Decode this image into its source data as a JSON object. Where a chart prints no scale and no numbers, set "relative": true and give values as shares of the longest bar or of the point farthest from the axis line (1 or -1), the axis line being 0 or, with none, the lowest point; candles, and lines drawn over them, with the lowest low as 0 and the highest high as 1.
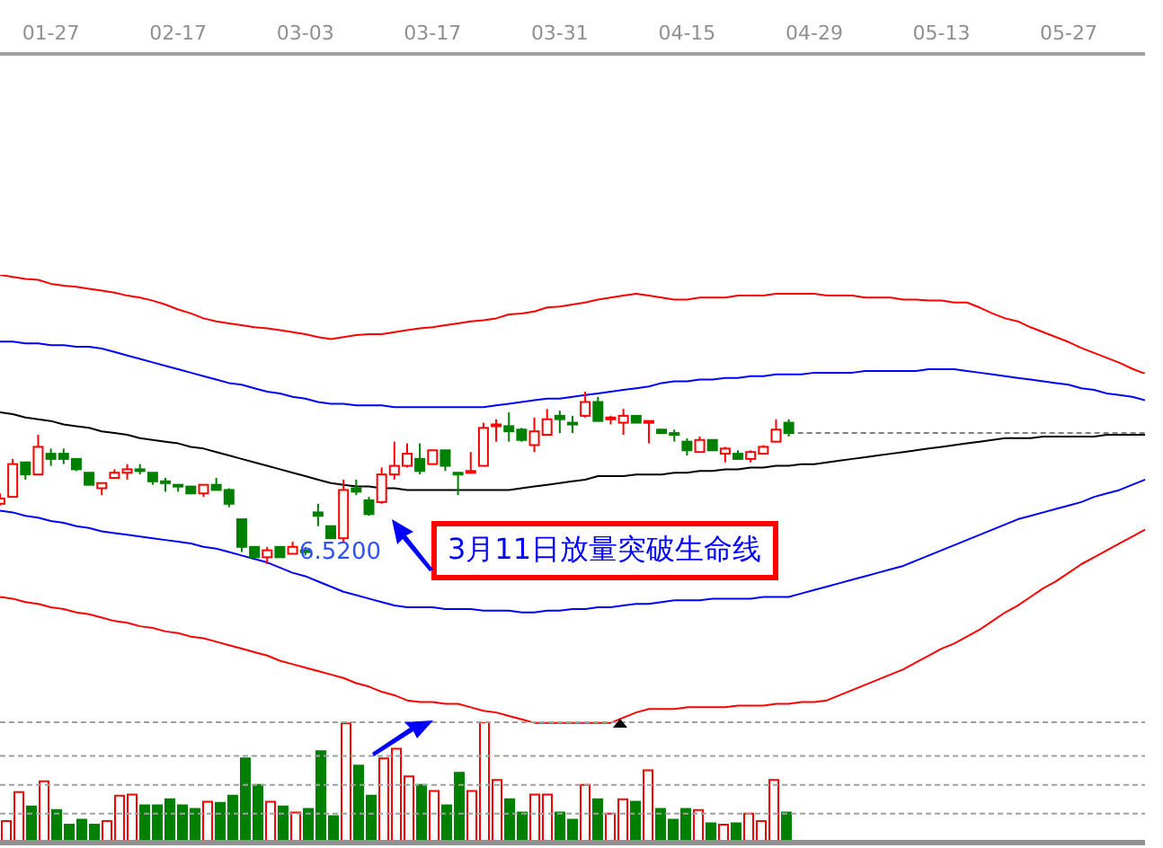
{
  "chart_data": [
    {
      "type": "candlestick",
      "relative": true,
      "categories": [
        null,
        null,
        null,
        null,
        "01-27",
        null,
        null,
        null,
        null,
        null,
        null,
        null,
        null,
        null,
        "02-17",
        null,
        null,
        null,
        null,
        null,
        null,
        null,
        null,
        null,
        "03-03",
        null,
        null,
        null,
        null,
        null,
        null,
        null,
        null,
        null,
        "03-17",
        null,
        null,
        null,
        null,
        null,
        null,
        null,
        null,
        null,
        "03-31",
        null,
        null,
        null,
        null,
        null,
        null,
        null,
        null,
        null,
        "04-15",
        null,
        null,
        null,
        null,
        null,
        null,
        null,
        null,
        null,
        "04-29",
        null,
        null,
        null,
        null,
        null,
        null,
        null,
        null,
        null,
        "05-13",
        null,
        null,
        null,
        null,
        null,
        null,
        null,
        null,
        null,
        "05-27",
        null,
        null,
        null,
        null,
        null,
        null
      ],
      "ohlc": [
        [
          0.35,
          0.41,
          0.34,
          0.38
        ],
        [
          0.39,
          0.61,
          0.39,
          0.58
        ],
        [
          0.59,
          0.59,
          0.49,
          0.52
        ],
        [
          0.52,
          0.75,
          0.52,
          0.68
        ],
        [
          0.64,
          0.67,
          0.57,
          0.61
        ],
        [
          0.64,
          0.67,
          0.58,
          0.61
        ],
        [
          0.61,
          0.61,
          0.54,
          0.55
        ],
        [
          0.53,
          0.53,
          0.46,
          0.46
        ],
        [
          0.44,
          0.47,
          0.4,
          0.47
        ],
        [
          0.5,
          0.55,
          0.5,
          0.53
        ],
        [
          0.53,
          0.58,
          0.49,
          0.55
        ],
        [
          0.55,
          0.58,
          0.52,
          0.54
        ],
        [
          0.53,
          0.53,
          0.46,
          0.48
        ],
        [
          0.48,
          0.5,
          0.42,
          0.47
        ],
        [
          0.46,
          0.46,
          0.42,
          0.45
        ],
        [
          0.45,
          0.45,
          0.41,
          0.41
        ],
        [
          0.41,
          0.46,
          0.39,
          0.46
        ],
        [
          0.46,
          0.5,
          0.43,
          0.43
        ],
        [
          0.43,
          0.44,
          0.33,
          0.35
        ],
        [
          0.26,
          0.26,
          0.07,
          0.1
        ],
        [
          0.1,
          0.1,
          0.03,
          0.04
        ],
        [
          0.04,
          0.1,
          0,
          0.08
        ],
        [
          0.1,
          0.1,
          0.04,
          0.04
        ],
        [
          0.06,
          0.13,
          0.06,
          0.1
        ],
        [
          0.08,
          0.1,
          0.05,
          0.07
        ],
        [
          0.3,
          0.35,
          0.22,
          0.28
        ],
        [
          0.22,
          0.22,
          0.15,
          0.15
        ],
        [
          0.15,
          0.49,
          0.13,
          0.43
        ],
        [
          0.44,
          0.49,
          0.4,
          0.42
        ],
        [
          0.37,
          0.39,
          0.28,
          0.29
        ],
        [
          0.36,
          0.56,
          0.35,
          0.52
        ],
        [
          0.52,
          0.71,
          0.49,
          0.57
        ],
        [
          0.57,
          0.7,
          0.56,
          0.64
        ],
        [
          0.61,
          0.7,
          0.52,
          0.54
        ],
        [
          0.58,
          0.66,
          0.58,
          0.66
        ],
        [
          0.66,
          0.66,
          0.54,
          0.57
        ],
        [
          0.53,
          0.53,
          0.4,
          0.53
        ],
        [
          0.53,
          0.65,
          0.53,
          0.54
        ],
        [
          0.57,
          0.82,
          0.57,
          0.79
        ],
        [
          0.8,
          0.84,
          0.71,
          0.81
        ],
        [
          0.8,
          0.88,
          0.71,
          0.77
        ],
        [
          0.78,
          0.79,
          0.71,
          0.72
        ],
        [
          0.69,
          0.85,
          0.65,
          0.77
        ],
        [
          0.75,
          0.9,
          0.75,
          0.84
        ],
        [
          0.86,
          0.89,
          0.76,
          0.84
        ],
        [
          0.82,
          0.86,
          0.76,
          0.82
        ],
        [
          0.86,
          1,
          0.85,
          0.94
        ],
        [
          0.94,
          0.97,
          0.83,
          0.83
        ],
        [
          0.84,
          0.86,
          0.81,
          0.85
        ],
        [
          0.82,
          0.9,
          0.75,
          0.86
        ],
        [
          0.86,
          0.86,
          0.82,
          0.82
        ],
        [
          0.82,
          0.83,
          0.7,
          0.83
        ],
        [
          0.78,
          0.78,
          0.76,
          0.76
        ],
        [
          0.76,
          0.78,
          0.71,
          0.76
        ],
        [
          0.71,
          0.73,
          0.63,
          0.66
        ],
        [
          0.65,
          0.74,
          0.65,
          0.72
        ],
        [
          0.72,
          0.72,
          0.66,
          0.66
        ],
        [
          0.64,
          0.68,
          0.59,
          0.67
        ],
        [
          0.64,
          0.66,
          0.61,
          0.61
        ],
        [
          0.61,
          0.66,
          0.59,
          0.65
        ],
        [
          0.64,
          0.69,
          0.64,
          0.68
        ],
        [
          0.71,
          0.84,
          0.71,
          0.78
        ],
        [
          0.82,
          0.84,
          0.74,
          0.76
        ],
        null,
        null,
        null,
        null,
        null,
        null,
        null,
        null,
        null,
        null,
        null,
        null,
        null,
        null,
        null,
        null,
        null,
        null,
        null,
        null,
        null,
        null,
        null,
        null,
        null,
        null,
        null,
        null
      ],
      "colors": [
        "#ff0000",
        "#ff0000",
        "#008000",
        "#ff0000",
        "#008000",
        "#008000",
        "#008000",
        "#008000",
        "#ff0000",
        "#ff0000",
        "#ff0000",
        "#008000",
        "#008000",
        "#008000",
        "#008000",
        "#008000",
        "#ff0000",
        "#008000",
        "#008000",
        "#008000",
        "#008000",
        "#ff0000",
        "#008000",
        "#ff0000",
        "#008000",
        "#008000",
        "#008000",
        "#ff0000",
        "#008000",
        "#008000",
        "#ff0000",
        "#ff0000",
        "#ff0000",
        "#008000",
        "#ff0000",
        "#008000",
        "#008000",
        "#ff0000",
        "#ff0000",
        "#ff0000",
        "#008000",
        "#008000",
        "#ff0000",
        "#ff0000",
        "#008000",
        "#008000",
        "#ff0000",
        "#008000",
        "#ff0000",
        "#ff0000",
        "#008000",
        "#ff0000",
        "#008000",
        "#008000",
        "#008000",
        "#ff0000",
        "#008000",
        "#ff0000",
        "#008000",
        "#ff0000",
        "#ff0000",
        "#ff0000",
        "#008000",
        null,
        null,
        null,
        null,
        null,
        null,
        null,
        null,
        null,
        null,
        null,
        null,
        null,
        null,
        null,
        null,
        null,
        null,
        null,
        null,
        null,
        null,
        null,
        null,
        null,
        null,
        null,
        null
      ],
      "series": [
        {
          "type": "line",
          "color": "#0000ff",
          "values": [
            1.29,
            1.29,
            1.28,
            1.28,
            1.27,
            1.27,
            1.26,
            1.26,
            1.25,
            1.23,
            1.21,
            1.19,
            1.17,
            1.15,
            1.13,
            1.11,
            1.09,
            1.07,
            1.05,
            1.04,
            1.02,
            1.0,
            0.99,
            0.97,
            0.96,
            0.94,
            0.93,
            0.93,
            0.92,
            0.92,
            0.92,
            0.91,
            0.91,
            0.91,
            0.91,
            0.91,
            0.91,
            0.91,
            0.91,
            0.92,
            0.93,
            0.94,
            0.95,
            0.96,
            0.96,
            0.97,
            0.98,
            0.99,
            1.0,
            1.01,
            1.02,
            1.03,
            1.05,
            1.06,
            1.06,
            1.07,
            1.07,
            1.08,
            1.08,
            1.09,
            1.09,
            1.1,
            1.1,
            1.1,
            1.11,
            1.11,
            1.11,
            1.11,
            1.12,
            1.12,
            1.12,
            1.12,
            1.12,
            1.13,
            1.13,
            1.13,
            1.12,
            1.11,
            1.1,
            1.09,
            1.08,
            1.07,
            1.06,
            1.05,
            1.04,
            1.02,
            1.01,
            0.99,
            0.98,
            0.97,
            0.95
          ]
        },
        {
          "type": "line",
          "color": "#000000",
          "values": [
            0.88,
            0.87,
            0.85,
            0.84,
            0.83,
            0.81,
            0.8,
            0.79,
            0.77,
            0.76,
            0.75,
            0.73,
            0.72,
            0.71,
            0.7,
            0.68,
            0.67,
            0.65,
            0.63,
            0.61,
            0.59,
            0.57,
            0.55,
            0.53,
            0.51,
            0.49,
            0.47,
            0.46,
            0.45,
            0.45,
            0.44,
            0.44,
            0.43,
            0.43,
            0.43,
            0.43,
            0.43,
            0.43,
            0.43,
            0.43,
            0.43,
            0.44,
            0.45,
            0.46,
            0.47,
            0.48,
            0.49,
            0.51,
            0.51,
            0.51,
            0.52,
            0.52,
            0.52,
            0.53,
            0.53,
            0.54,
            0.54,
            0.55,
            0.55,
            0.56,
            0.56,
            0.57,
            0.57,
            0.58,
            0.58,
            0.59,
            0.6,
            0.61,
            0.62,
            0.63,
            0.64,
            0.65,
            0.66,
            0.67,
            0.68,
            0.69,
            0.7,
            0.71,
            0.72,
            0.73,
            0.73,
            0.73,
            0.74,
            0.74,
            0.74,
            0.74,
            0.74,
            0.75,
            0.75,
            0.75,
            0.75
          ]
        },
        {
          "type": "line",
          "color": "#0000ff",
          "values": [
            0.31,
            0.3,
            0.28,
            0.27,
            0.25,
            0.24,
            0.22,
            0.21,
            0.19,
            0.18,
            0.17,
            0.16,
            0.15,
            0.14,
            0.13,
            0.12,
            0.1,
            0.09,
            0.07,
            0.05,
            0.03,
            0.01,
            -0.02,
            -0.05,
            -0.07,
            -0.1,
            -0.13,
            -0.16,
            -0.18,
            -0.2,
            -0.22,
            -0.24,
            -0.25,
            -0.25,
            -0.25,
            -0.26,
            -0.26,
            -0.26,
            -0.27,
            -0.27,
            -0.27,
            -0.28,
            -0.28,
            -0.27,
            -0.27,
            -0.26,
            -0.26,
            -0.25,
            -0.25,
            -0.24,
            -0.23,
            -0.23,
            -0.22,
            -0.21,
            -0.21,
            -0.21,
            -0.2,
            -0.2,
            -0.2,
            -0.2,
            -0.19,
            -0.19,
            -0.19,
            -0.17,
            -0.15,
            -0.13,
            -0.11,
            -0.09,
            -0.07,
            -0.05,
            -0.03,
            -0.01,
            0.02,
            0.05,
            0.08,
            0.11,
            0.14,
            0.17,
            0.2,
            0.23,
            0.26,
            0.28,
            0.3,
            0.32,
            0.34,
            0.36,
            0.39,
            0.41,
            0.43,
            0.46,
            0.49
          ]
        },
        {
          "type": "line",
          "color": "#ff0000",
          "values": [
            -0.19,
            -0.2,
            -0.22,
            -0.23,
            -0.25,
            -0.26,
            -0.28,
            -0.29,
            -0.31,
            -0.33,
            -0.34,
            -0.36,
            -0.37,
            -0.39,
            -0.4,
            -0.42,
            -0.43,
            -0.45,
            -0.47,
            -0.49,
            -0.51,
            -0.53,
            -0.56,
            -0.58,
            -0.6,
            -0.62,
            -0.64,
            -0.66,
            -0.69,
            -0.71,
            -0.74,
            -0.76,
            -0.79,
            -0.8,
            -0.8,
            -0.81,
            -0.81,
            -0.83,
            -0.85,
            -0.86,
            -0.88,
            -0.9,
            -0.92,
            -0.92,
            -0.92,
            -0.92,
            -0.92,
            -0.92,
            -0.92,
            -0.89,
            -0.86,
            -0.84,
            -0.84,
            -0.84,
            -0.83,
            -0.83,
            -0.83,
            -0.83,
            -0.82,
            -0.82,
            -0.82,
            -0.81,
            -0.81,
            -0.8,
            -0.8,
            -0.79,
            -0.76,
            -0.73,
            -0.7,
            -0.67,
            -0.64,
            -0.61,
            -0.57,
            -0.53,
            -0.49,
            -0.46,
            -0.42,
            -0.38,
            -0.33,
            -0.28,
            -0.24,
            -0.19,
            -0.14,
            -0.1,
            -0.05,
            0.0,
            0.04,
            0.08,
            0.12,
            0.16,
            0.2
          ]
        },
        {
          "type": "line",
          "color": "#808080",
          "line_style": "dashed",
          "values": [
            null,
            null,
            null,
            null,
            null,
            null,
            null,
            null,
            null,
            null,
            null,
            null,
            null,
            null,
            null,
            null,
            null,
            null,
            null,
            null,
            null,
            null,
            null,
            null,
            null,
            null,
            null,
            null,
            null,
            null,
            null,
            null,
            null,
            null,
            null,
            null,
            null,
            null,
            null,
            null,
            null,
            null,
            null,
            null,
            null,
            null,
            null,
            null,
            null,
            null,
            null,
            null,
            null,
            null,
            null,
            null,
            null,
            null,
            null,
            null,
            null,
            null,
            0.76,
            0.76,
            0.76,
            0.76,
            0.76,
            0.76,
            0.76,
            0.76,
            0.76,
            0.76,
            0.76,
            0.76,
            0.76,
            0.76,
            0.76,
            0.76,
            0.76,
            0.76,
            0.76,
            0.76,
            0.76,
            0.76,
            0.76,
            0.76,
            0.76,
            0.76,
            0.76,
            0.76,
            0.76
          ]
        }
      ],
      "annotations": [
        "6.5200",
        "3月11日放量突破生命线"
      ]
    },
    {
      "type": "line",
      "relative": true,
      "categories": [
        null,
        null,
        null,
        null,
        null,
        null,
        null,
        null,
        null,
        null,
        null,
        null,
        null,
        null,
        null,
        null,
        null,
        null,
        null,
        null,
        null,
        null,
        null,
        null,
        null,
        null,
        null,
        null,
        null,
        null,
        null,
        null,
        null,
        null,
        null,
        null,
        null,
        null,
        null,
        null,
        null,
        null,
        null,
        null,
        null,
        null,
        null,
        null,
        null,
        null,
        null,
        null,
        null,
        null,
        null,
        null,
        null,
        null,
        null,
        null,
        null,
        null,
        null,
        null,
        null,
        null,
        null,
        null,
        null,
        null,
        null,
        null,
        null,
        null,
        null,
        null,
        null,
        null,
        null,
        null,
        null,
        null,
        null,
        null,
        null,
        null,
        null,
        null,
        null,
        null,
        null
      ],
      "series": [
        {
          "color": "#ff0000",
          "values": [
            1.0,
            0.98,
            0.96,
            0.95,
            0.91,
            0.89,
            0.88,
            0.86,
            0.84,
            0.82,
            0.79,
            0.77,
            0.74,
            0.7,
            0.65,
            0.61,
            0.56,
            0.53,
            0.51,
            0.49,
            0.47,
            0.46,
            0.44,
            0.42,
            0.4,
            0.37,
            0.35,
            0.37,
            0.39,
            0.4,
            0.4,
            0.42,
            0.44,
            0.46,
            0.47,
            0.49,
            0.51,
            0.53,
            0.54,
            0.56,
            0.6,
            0.61,
            0.63,
            0.67,
            0.68,
            0.7,
            0.72,
            0.75,
            0.77,
            0.79,
            0.81,
            0.79,
            0.77,
            0.75,
            0.75,
            0.77,
            0.77,
            0.77,
            0.79,
            0.79,
            0.79,
            0.81,
            0.81,
            0.81,
            0.81,
            0.79,
            0.79,
            0.79,
            0.77,
            0.77,
            0.77,
            0.75,
            0.75,
            0.74,
            0.74,
            0.72,
            0.72,
            0.67,
            0.61,
            0.56,
            0.53,
            0.47,
            0.42,
            0.37,
            0.32,
            0.26,
            0.21,
            0.16,
            0.11,
            0.05,
            0
          ]
        }
      ]
    },
    {
      "type": "bar",
      "relative": true,
      "categories": [
        null,
        null,
        null,
        null,
        null,
        null,
        null,
        null,
        null,
        null,
        null,
        null,
        null,
        null,
        null,
        null,
        null,
        null,
        null,
        null,
        null,
        null,
        null,
        null,
        null,
        null,
        null,
        null,
        null,
        null,
        null,
        null,
        null,
        null,
        null,
        null,
        null,
        null,
        null,
        null,
        null,
        null,
        null,
        null,
        null,
        null,
        null,
        null,
        null,
        null,
        null,
        null,
        null,
        null,
        null,
        null,
        null,
        null,
        null,
        null,
        null,
        null,
        null,
        null,
        null,
        null,
        null,
        null,
        null,
        null,
        null,
        null,
        null,
        null,
        null,
        null,
        null,
        null,
        null,
        null,
        null,
        null,
        null,
        null,
        null,
        null,
        null,
        null,
        null,
        null,
        null
      ],
      "values": [
        0.18,
        0.42,
        0.3,
        0.51,
        0.27,
        0.15,
        0.19,
        0.15,
        0.18,
        0.39,
        0.4,
        0.31,
        0.31,
        0.36,
        0.31,
        0.28,
        0.34,
        0.33,
        0.39,
        0.7,
        0.48,
        0.34,
        0.3,
        0.25,
        0.28,
        0.76,
        0.22,
        0.99,
        0.64,
        0.39,
        0.7,
        0.78,
        0.55,
        0.48,
        0.43,
        0.31,
        0.58,
        0.43,
        1,
        0.52,
        0.36,
        0.25,
        0.4,
        0.4,
        0.25,
        0.19,
        0.48,
        0.36,
        0.24,
        0.36,
        0.34,
        0.6,
        0.28,
        0.19,
        0.28,
        0.27,
        0.16,
        0.15,
        0.16,
        0.24,
        0.18,
        0.52,
        0.25,
        null,
        null,
        null,
        null,
        null,
        null,
        null,
        null,
        null,
        null,
        null,
        null,
        null,
        null,
        null,
        null,
        null,
        null,
        null,
        null,
        null,
        null,
        null,
        null,
        null,
        null,
        null,
        null
      ],
      "colors": [
        "#ff0000",
        "#ff0000",
        "#008000",
        "#ff0000",
        "#008000",
        "#008000",
        "#008000",
        "#008000",
        "#ff0000",
        "#ff0000",
        "#ff0000",
        "#008000",
        "#008000",
        "#008000",
        "#008000",
        "#008000",
        "#ff0000",
        "#008000",
        "#008000",
        "#008000",
        "#008000",
        "#ff0000",
        "#008000",
        "#ff0000",
        "#008000",
        "#008000",
        "#008000",
        "#ff0000",
        "#008000",
        "#008000",
        "#ff0000",
        "#ff0000",
        "#ff0000",
        "#008000",
        "#ff0000",
        "#008000",
        "#008000",
        "#ff0000",
        "#ff0000",
        "#ff0000",
        "#008000",
        "#008000",
        "#ff0000",
        "#ff0000",
        "#008000",
        "#008000",
        "#ff0000",
        "#008000",
        "#ff0000",
        "#ff0000",
        "#008000",
        "#ff0000",
        "#008000",
        "#008000",
        "#008000",
        "#ff0000",
        "#008000",
        "#ff0000",
        "#008000",
        "#ff0000",
        "#ff0000",
        "#ff0000",
        "#008000",
        null,
        null,
        null,
        null,
        null,
        null,
        null,
        null,
        null,
        null,
        null,
        null,
        null,
        null,
        null,
        null,
        null,
        null,
        null,
        null,
        null,
        null,
        null,
        null,
        null,
        null,
        null,
        null
      ],
      "ref_lines": [
        {
          "axis": "y",
          "value": 1,
          "color": "#a0a0a0",
          "line_style": "dashed"
        },
        {
          "axis": "y",
          "value": 0.72,
          "color": "#a0a0a0",
          "line_style": "dashed"
        },
        {
          "axis": "y",
          "value": 0.48,
          "color": "#a0a0a0",
          "line_style": "dashed"
        },
        {
          "axis": "y",
          "value": 0.24,
          "color": "#a0a0a0",
          "line_style": "dashed"
        }
      ]
    }
  ]
}
